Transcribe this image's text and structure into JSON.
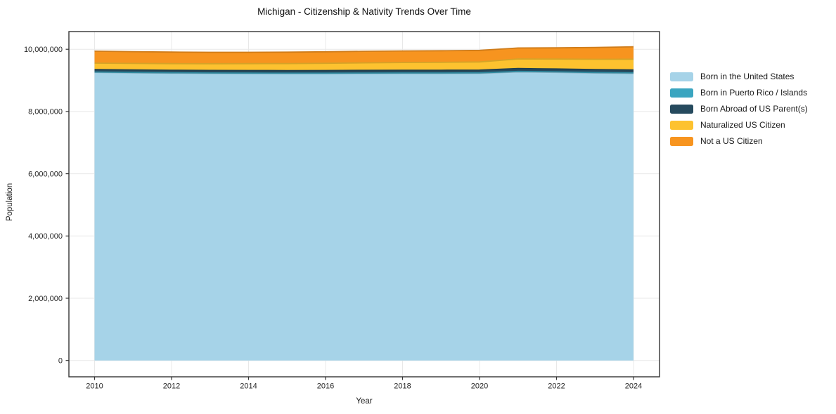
{
  "chart_data": {
    "type": "area",
    "stacked": true,
    "title": "Michigan - Citizenship & Nativity Trends Over Time",
    "xlabel": "Year",
    "ylabel": "Population",
    "grid": true,
    "legend_position": "right-outside-top",
    "x": [
      2010,
      2011,
      2012,
      2013,
      2014,
      2015,
      2016,
      2017,
      2018,
      2019,
      2020,
      2021,
      2022,
      2023,
      2024
    ],
    "x_ticks": [
      2010,
      2012,
      2014,
      2016,
      2018,
      2020,
      2022,
      2024
    ],
    "y_ticks": [
      0,
      2000000,
      4000000,
      6000000,
      8000000,
      10000000
    ],
    "ylim": [
      0,
      10000000
    ],
    "series": [
      {
        "name": "Born in the United States",
        "color": "#A6D3E8",
        "values": [
          9255000,
          9243000,
          9230000,
          9222000,
          9218000,
          9215000,
          9215000,
          9220000,
          9222000,
          9220000,
          9225000,
          9270000,
          9255000,
          9235000,
          9220000
        ]
      },
      {
        "name": "Born in Puerto Rico / Islands",
        "color": "#3AA5C0",
        "values": [
          14000,
          14000,
          15000,
          15000,
          15000,
          15000,
          16000,
          16000,
          16000,
          17000,
          17000,
          18000,
          18000,
          19000,
          20000
        ]
      },
      {
        "name": "Born Abroad of US Parent(s)",
        "color": "#264A5E",
        "values": [
          80000,
          80000,
          81000,
          82000,
          83000,
          84000,
          85000,
          86000,
          87000,
          88000,
          88000,
          92000,
          93000,
          94000,
          95000
        ]
      },
      {
        "name": "Naturalized US Citizen",
        "color": "#FDC22F",
        "values": [
          205000,
          208000,
          212000,
          216000,
          221000,
          227000,
          233000,
          240000,
          248000,
          255000,
          262000,
          308000,
          318000,
          330000,
          345000
        ]
      },
      {
        "name": "Not a US Citizen",
        "color": "#F7941F",
        "values": [
          385000,
          378000,
          372000,
          368000,
          366000,
          367000,
          369000,
          372000,
          373000,
          372000,
          372000,
          352000,
          360000,
          380000,
          400000
        ]
      }
    ]
  }
}
